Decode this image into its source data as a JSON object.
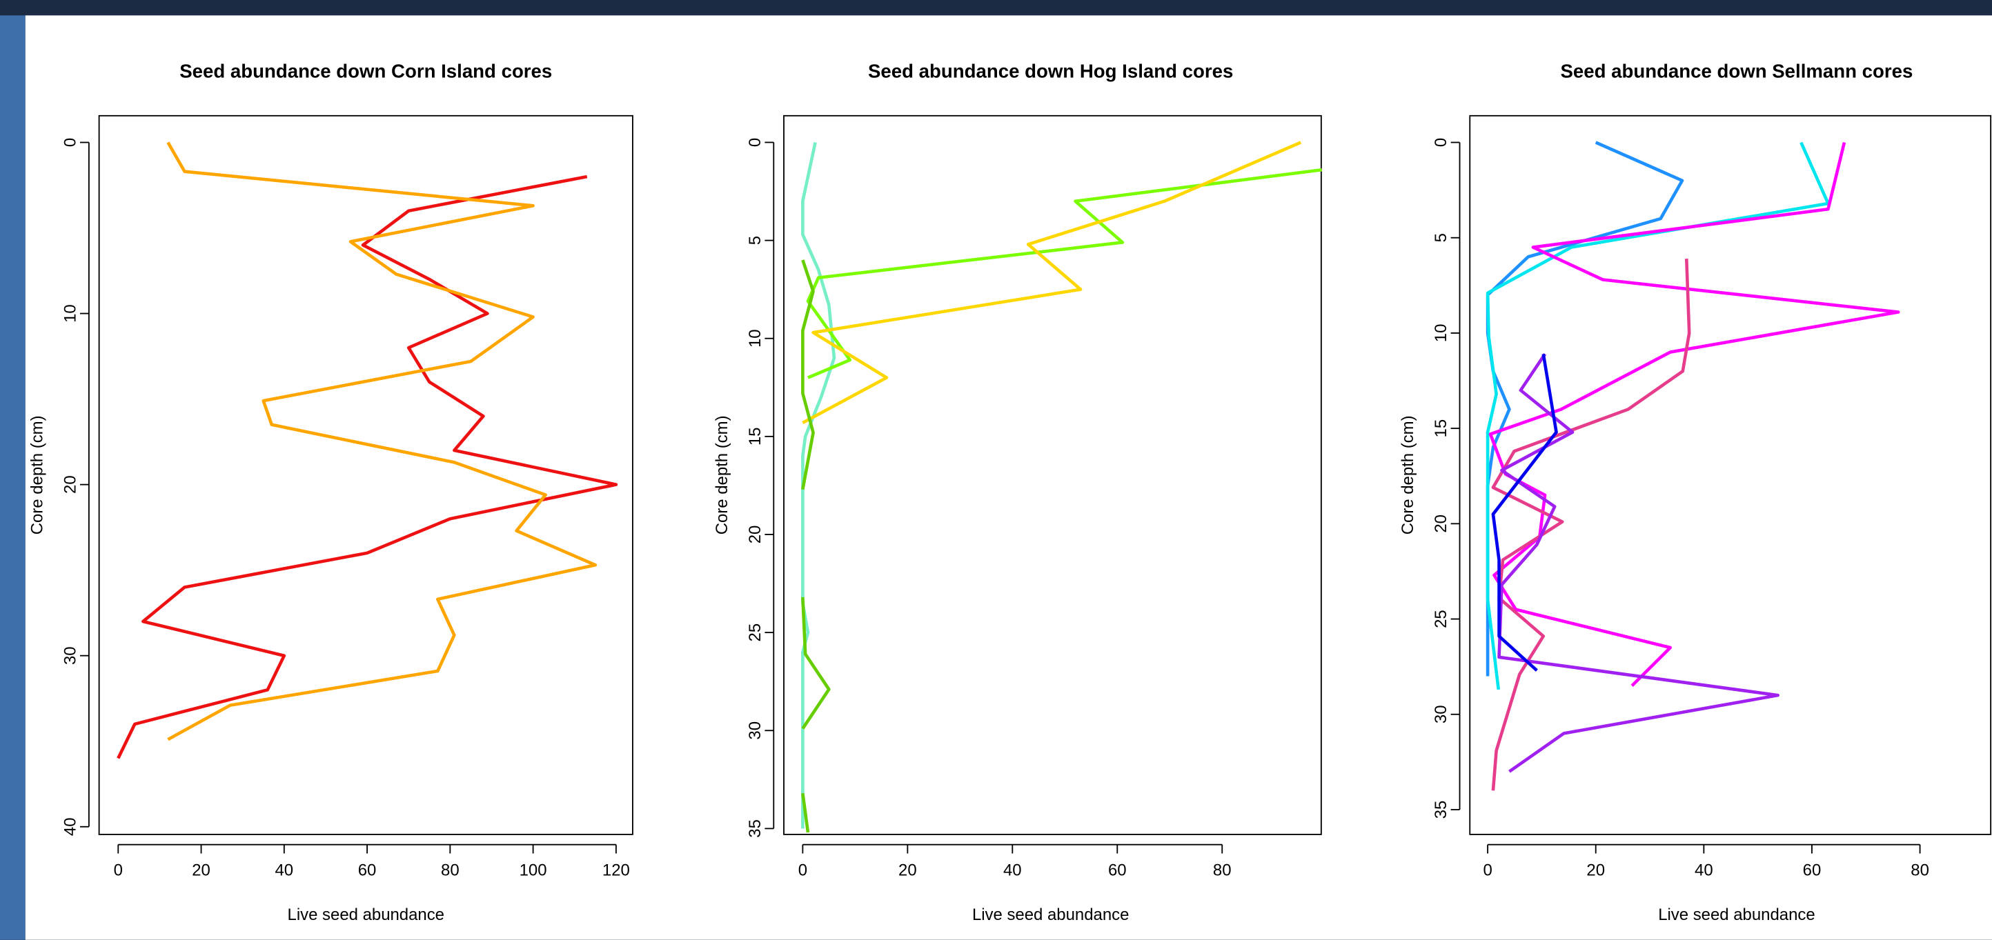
{
  "chart_data": [
    {
      "type": "line",
      "title": "Seed abundance down Corn Island cores",
      "xlabel": "Live seed abundance",
      "ylabel": "Core depth (cm)",
      "xlim": [
        -4.6,
        124
      ],
      "ylim": [
        40.45,
        -1.56
      ],
      "xticks": [
        0,
        20,
        40,
        60,
        80,
        100,
        120
      ],
      "yticks": [
        0,
        10,
        20,
        30,
        40
      ],
      "series": [
        {
          "color": "#ee1111",
          "x": [
            113,
            70,
            59,
            75,
            89,
            70,
            75,
            88,
            81,
            120,
            80,
            60,
            16,
            6,
            40,
            36,
            4,
            0
          ],
          "y": [
            2,
            4,
            6,
            8,
            10,
            12,
            14,
            16,
            18,
            20,
            22,
            24,
            26,
            28,
            30,
            32,
            34,
            36
          ]
        },
        {
          "color": "#ffa500",
          "x": [
            12,
            16,
            100,
            56,
            67,
            100,
            85,
            35,
            37,
            81,
            103,
            96,
            115,
            77,
            81,
            77,
            27,
            12
          ],
          "y": [
            0,
            1.7,
            3.7,
            5.8,
            7.7,
            10.2,
            12.8,
            15.1,
            16.5,
            18.7,
            20.6,
            22.7,
            24.7,
            26.7,
            28.8,
            30.9,
            32.9,
            34.9
          ]
        }
      ]
    },
    {
      "type": "line",
      "title": "Seed abundance down Hog Island cores",
      "xlabel": "Live seed abundance",
      "ylabel": "Core depth (cm)",
      "xlim": [
        -3.6,
        98.9
      ],
      "ylim": [
        35.3,
        -1.36
      ],
      "xticks": [
        0,
        20,
        40,
        60,
        80
      ],
      "yticks": [
        0,
        5,
        10,
        15,
        20,
        25,
        30,
        35
      ],
      "series": [
        {
          "color": "#76eec6",
          "x": [
            2.4,
            0,
            0,
            3,
            5,
            6,
            3.5,
            0.5,
            0,
            0,
            1,
            0,
            0
          ],
          "y": [
            0,
            3,
            4.7,
            6.5,
            8.3,
            11,
            13,
            15,
            16,
            23.5,
            25,
            26,
            35
          ]
        },
        {
          "color": "#7cfc00",
          "x": [
            99,
            52,
            61,
            3,
            1,
            9,
            1
          ],
          "y": [
            1.4,
            3,
            5.1,
            6.9,
            8.1,
            11.1,
            12
          ]
        },
        {
          "color": "#ffd700",
          "x": [
            95,
            69,
            43,
            53,
            2,
            16,
            0
          ],
          "y": [
            0,
            3,
            5.2,
            7.5,
            9.7,
            12,
            14.3
          ]
        },
        {
          "color": "#66cd00",
          "x": [
            0,
            2,
            0,
            0,
            0,
            2,
            0,
            null,
            0,
            0.5,
            5,
            0,
            null,
            0,
            1
          ],
          "y": [
            6,
            7.6,
            9.6,
            11.5,
            12.8,
            14.8,
            17.7,
            null,
            23.2,
            26.1,
            27.9,
            29.9,
            null,
            33.2,
            35.2
          ]
        }
      ]
    },
    {
      "type": "line",
      "title": "Seed abundance down Sellmann cores",
      "xlabel": "Live seed abundance",
      "ylabel": "Core depth (cm)",
      "xlim": [
        -3.3,
        93.1
      ],
      "ylim": [
        36.3,
        -1.4
      ],
      "xticks": [
        0,
        20,
        40,
        60,
        80
      ],
      "yticks": [
        0,
        5,
        10,
        15,
        20,
        25,
        30,
        35
      ],
      "series": [
        {
          "color": "#1e90ff",
          "x": [
            20,
            36,
            32,
            7.5,
            0,
            0,
            1,
            4,
            1,
            0,
            0
          ],
          "y": [
            0,
            2,
            4,
            6,
            8,
            10,
            12,
            14,
            16,
            18,
            28
          ]
        },
        {
          "color": "#00e5ee",
          "x": [
            58,
            63,
            15.5,
            0,
            0.2,
            1.6,
            0,
            0,
            2
          ],
          "y": [
            0,
            3.2,
            5.5,
            7.9,
            10.2,
            13.2,
            15.2,
            24,
            28.7
          ]
        },
        {
          "color": "#ff00ff",
          "x": [
            66,
            63,
            8.4,
            21.3,
            76,
            33.8,
            13.6,
            0.5,
            3.3,
            10.6,
            9.6,
            1.2,
            5.2,
            33.8,
            26.7
          ],
          "y": [
            0,
            3.5,
            5.5,
            7.2,
            8.9,
            11,
            14,
            15.3,
            17.4,
            18.5,
            20.7,
            22.7,
            24.5,
            26.5,
            28.5
          ]
        },
        {
          "color": "#e63c8c",
          "x": [
            36.8,
            37.3,
            36.1,
            26,
            4.9,
            1,
            13.8,
            2.8,
            2.1,
            10.3,
            5.9,
            1.6,
            1
          ],
          "y": [
            6.1,
            10,
            12,
            14,
            16.2,
            18.1,
            19.9,
            21.9,
            23.9,
            25.9,
            27.9,
            31.9,
            34
          ]
        },
        {
          "color": "#a020f0",
          "x": [
            10.6,
            6.1,
            15.7,
            2.6,
            12.4,
            9.1,
            2.6,
            2.1,
            53.7,
            14.1,
            4
          ],
          "y": [
            11.1,
            13,
            15.2,
            17.2,
            19.1,
            21.1,
            23.2,
            27,
            29,
            31,
            33
          ]
        },
        {
          "color": "#0000ee",
          "x": [
            10.3,
            12.7,
            1,
            2.1,
            2.1,
            9.1
          ],
          "y": [
            11.1,
            15.2,
            19.5,
            21.9,
            25.9,
            27.7
          ]
        }
      ]
    }
  ]
}
